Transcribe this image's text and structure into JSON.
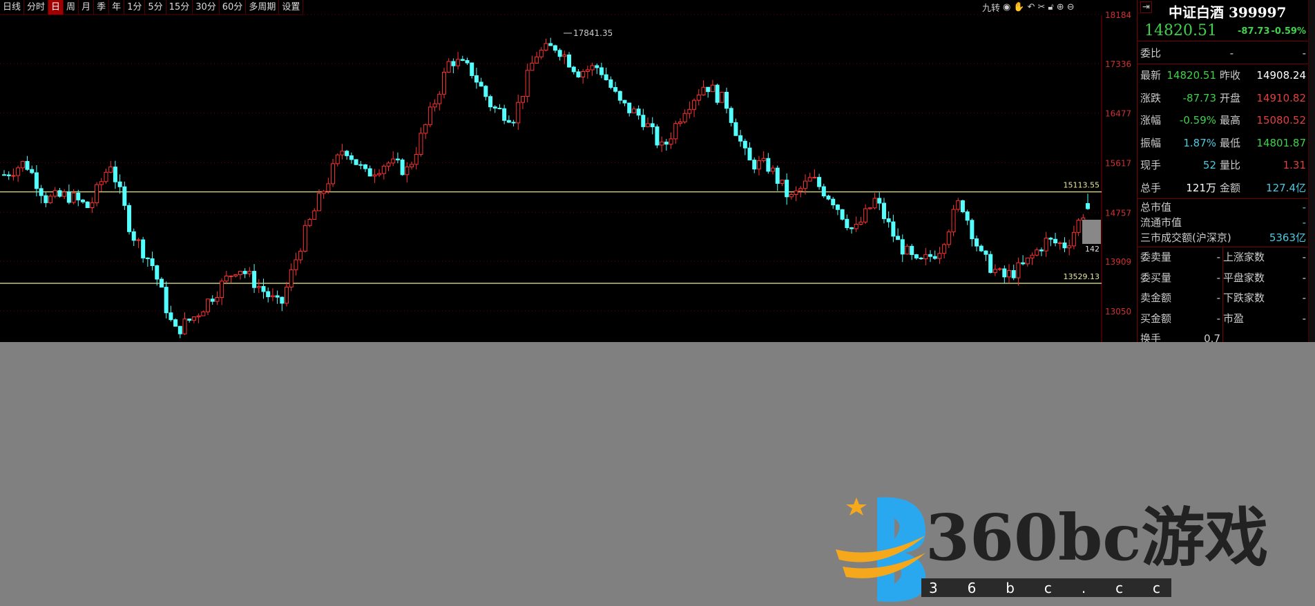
{
  "toolbar": {
    "items": [
      "日线",
      "分时",
      "日",
      "周",
      "月",
      "季",
      "年",
      "1分",
      "5分",
      "15分",
      "30分",
      "60分",
      "多周期",
      "设置"
    ],
    "active": 2
  },
  "tools": {
    "label": "九转",
    "icons": [
      "eye-icon",
      "hand-icon",
      "undo-icon",
      "scissors-icon",
      "lock-icon",
      "zoom-in-icon",
      "zoom-out-icon"
    ]
  },
  "chart_data": {
    "type": "candlestick",
    "y_ticks": [
      18184,
      17336,
      16477,
      15617,
      14757,
      13909,
      13050
    ],
    "ylim": [
      12600,
      18300
    ],
    "hlines": [
      {
        "value": 15113.55,
        "label": "15113.55"
      },
      {
        "value": 13529.13,
        "label": "13529.13"
      }
    ],
    "max_label": "17841.35",
    "crosshair_label": "142",
    "price_trend": [
      15410,
      15627,
      14980,
      15050,
      14835,
      15627,
      14405,
      13830,
      12680,
      12970,
      13400,
      13830,
      13470,
      13110,
      14260,
      15120,
      15910,
      15410,
      15627,
      15480,
      16410,
      17420,
      17200,
      16560,
      16410,
      17490,
      17640,
      17200,
      17280,
      16630,
      16410,
      15840,
      16560,
      16990,
      16630,
      15627,
      15550,
      14980,
      15340,
      14980,
      14405,
      14980,
      14260,
      13830,
      14120,
      14980,
      13980,
      13620,
      13830,
      14260,
      14190,
      14900
    ],
    "latest": {
      "open": 14910.82,
      "high": 15080.52,
      "low": 14801.87,
      "close": 14820.51
    },
    "colors": {
      "up": "#ff3232",
      "down": "#54ffff",
      "axis": "#d03030",
      "hline": "#c8c878"
    }
  },
  "quote": {
    "name": "中证白酒",
    "code": "399997",
    "price": "14820.51",
    "change": "-87.73",
    "pct": "-0.59%",
    "weibi_label": "委比",
    "weibi_v1": "-",
    "weibi_v2": "-",
    "rows": [
      {
        "l": "最新",
        "v1": "14820.51",
        "c1": "g",
        "l2": "昨收",
        "v2": "14908.24",
        "c2": "w"
      },
      {
        "l": "涨跌",
        "v1": "-87.73",
        "c1": "g",
        "l2": "开盘",
        "v2": "14910.82",
        "c2": "r"
      },
      {
        "l": "涨幅",
        "v1": "-0.59%",
        "c1": "g",
        "l2": "最高",
        "v2": "15080.52",
        "c2": "r"
      },
      {
        "l": "振幅",
        "v1": "1.87%",
        "c1": "c",
        "l2": "最低",
        "v2": "14801.87",
        "c2": "g"
      },
      {
        "l": "现手",
        "v1": "52",
        "c1": "c",
        "l2": "量比",
        "v2": "1.31",
        "c2": "r"
      },
      {
        "l": "总手",
        "v1": "121万",
        "c1": "w",
        "l2": "金额",
        "v2": "127.4亿",
        "c2": "c"
      }
    ],
    "mkt": [
      {
        "l": "总市值",
        "v": "-"
      },
      {
        "l": "流通市值",
        "v": "-"
      },
      {
        "l": "三市成交额(沪深京)",
        "v": "5363亿"
      }
    ],
    "book": [
      {
        "l": "委卖量",
        "v1": "-",
        "l2": "上涨家数",
        "v2": "-"
      },
      {
        "l": "委买量",
        "v1": "-",
        "l2": "平盘家数",
        "v2": "-"
      },
      {
        "l": "卖金额",
        "v1": "-",
        "l2": "下跌家数",
        "v2": "-"
      },
      {
        "l": "买金额",
        "v1": "-",
        "l2": "市盈",
        "v2": "-"
      },
      {
        "l": "换手",
        "v1": "0.7",
        "l2": "",
        "v2": ""
      }
    ]
  },
  "watermark": {
    "title": "360bc游戏",
    "url": "3 6 b c . c c"
  }
}
